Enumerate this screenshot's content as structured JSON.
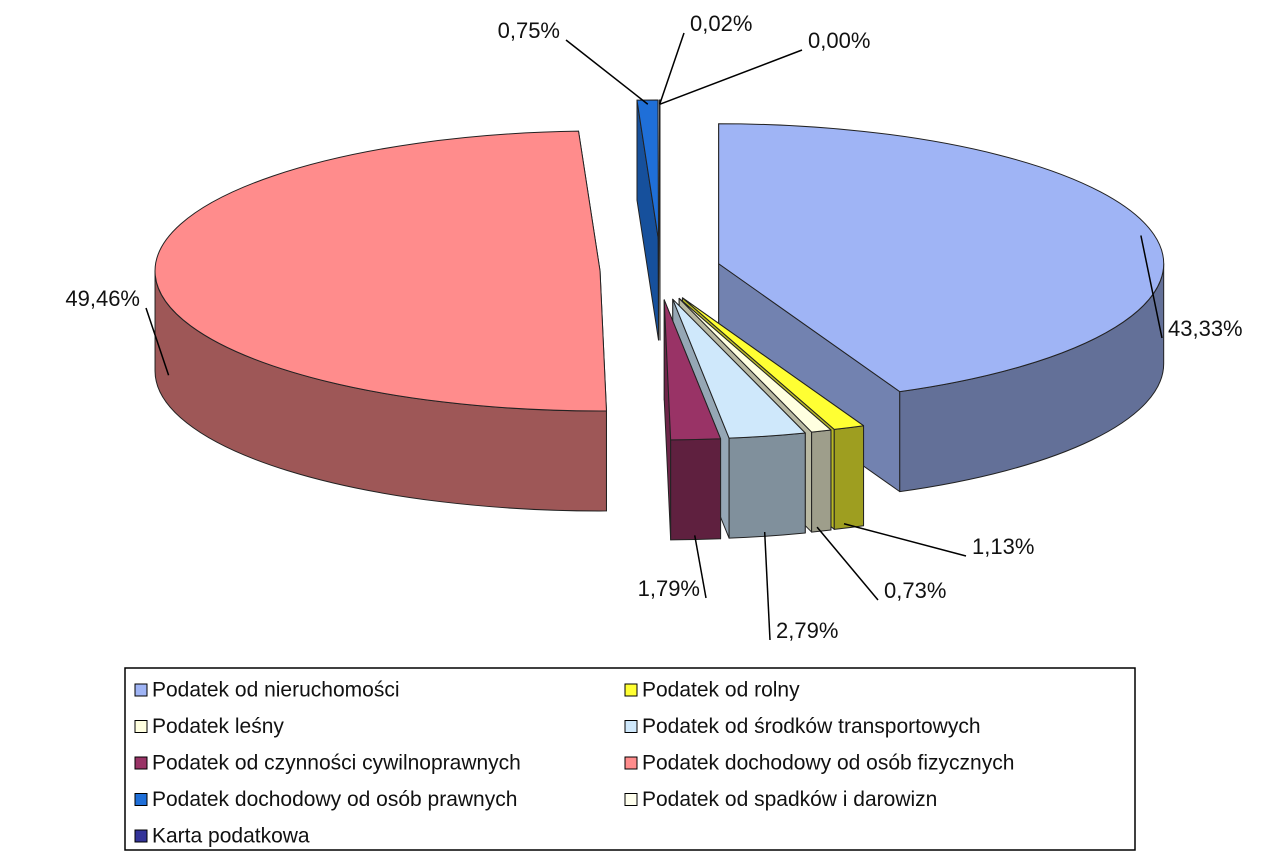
{
  "chart_data": {
    "type": "pie",
    "categories": [
      "Podatek od nieruchomości",
      "Podatek od rolny",
      "Podatek leśny",
      "Podatek od środków transportowych",
      "Podatek od czynności cywilnoprawnych",
      "Podatek dochodowy od osób fizycznych",
      "Podatek dochodowy od osób prawnych",
      "Podatek od spadków i darowizn",
      "Karta podatkowa"
    ],
    "values": [
      43.33,
      1.13,
      0.73,
      2.79,
      1.79,
      49.46,
      0.75,
      0.02,
      0.0
    ],
    "value_labels": [
      "43,33%",
      "1,13%",
      "0,73%",
      "2,79%",
      "1,79%",
      "49,46%",
      "0,75%",
      "0,02%",
      "0,00%"
    ],
    "colors": [
      "#9fb4f5",
      "#ffff33",
      "#ffffe0",
      "#cfe8fb",
      "#993366",
      "#ff8c8c",
      "#1f6fd8",
      "#ffffee",
      "#333399"
    ],
    "legend": "bottom"
  }
}
